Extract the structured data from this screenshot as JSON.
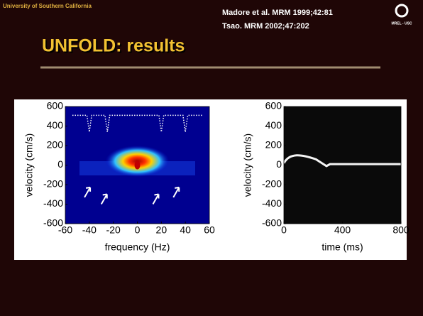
{
  "header": {
    "institution": "University of Southern California",
    "title": "UNFOLD: results",
    "references": [
      "Madore et al. MRM 1999;42:81",
      "Tsao. MRM 2002;47:202"
    ],
    "logo": "MREL - USC"
  },
  "figure": {
    "panels": [
      {
        "ylabel": "velocity (cm/s)",
        "xlabel": "frequency (Hz)",
        "yticks": [
          600,
          400,
          200,
          0,
          -200,
          -400,
          -600
        ],
        "xticks": [
          -60,
          -40,
          -20,
          0,
          20,
          40,
          60
        ]
      },
      {
        "ylabel": "velocity (cm/s)",
        "xlabel": "time (ms)",
        "yticks": [
          600,
          400,
          200,
          0,
          -200,
          -400,
          -600
        ],
        "xticks": [
          0,
          400,
          800
        ]
      }
    ]
  }
}
